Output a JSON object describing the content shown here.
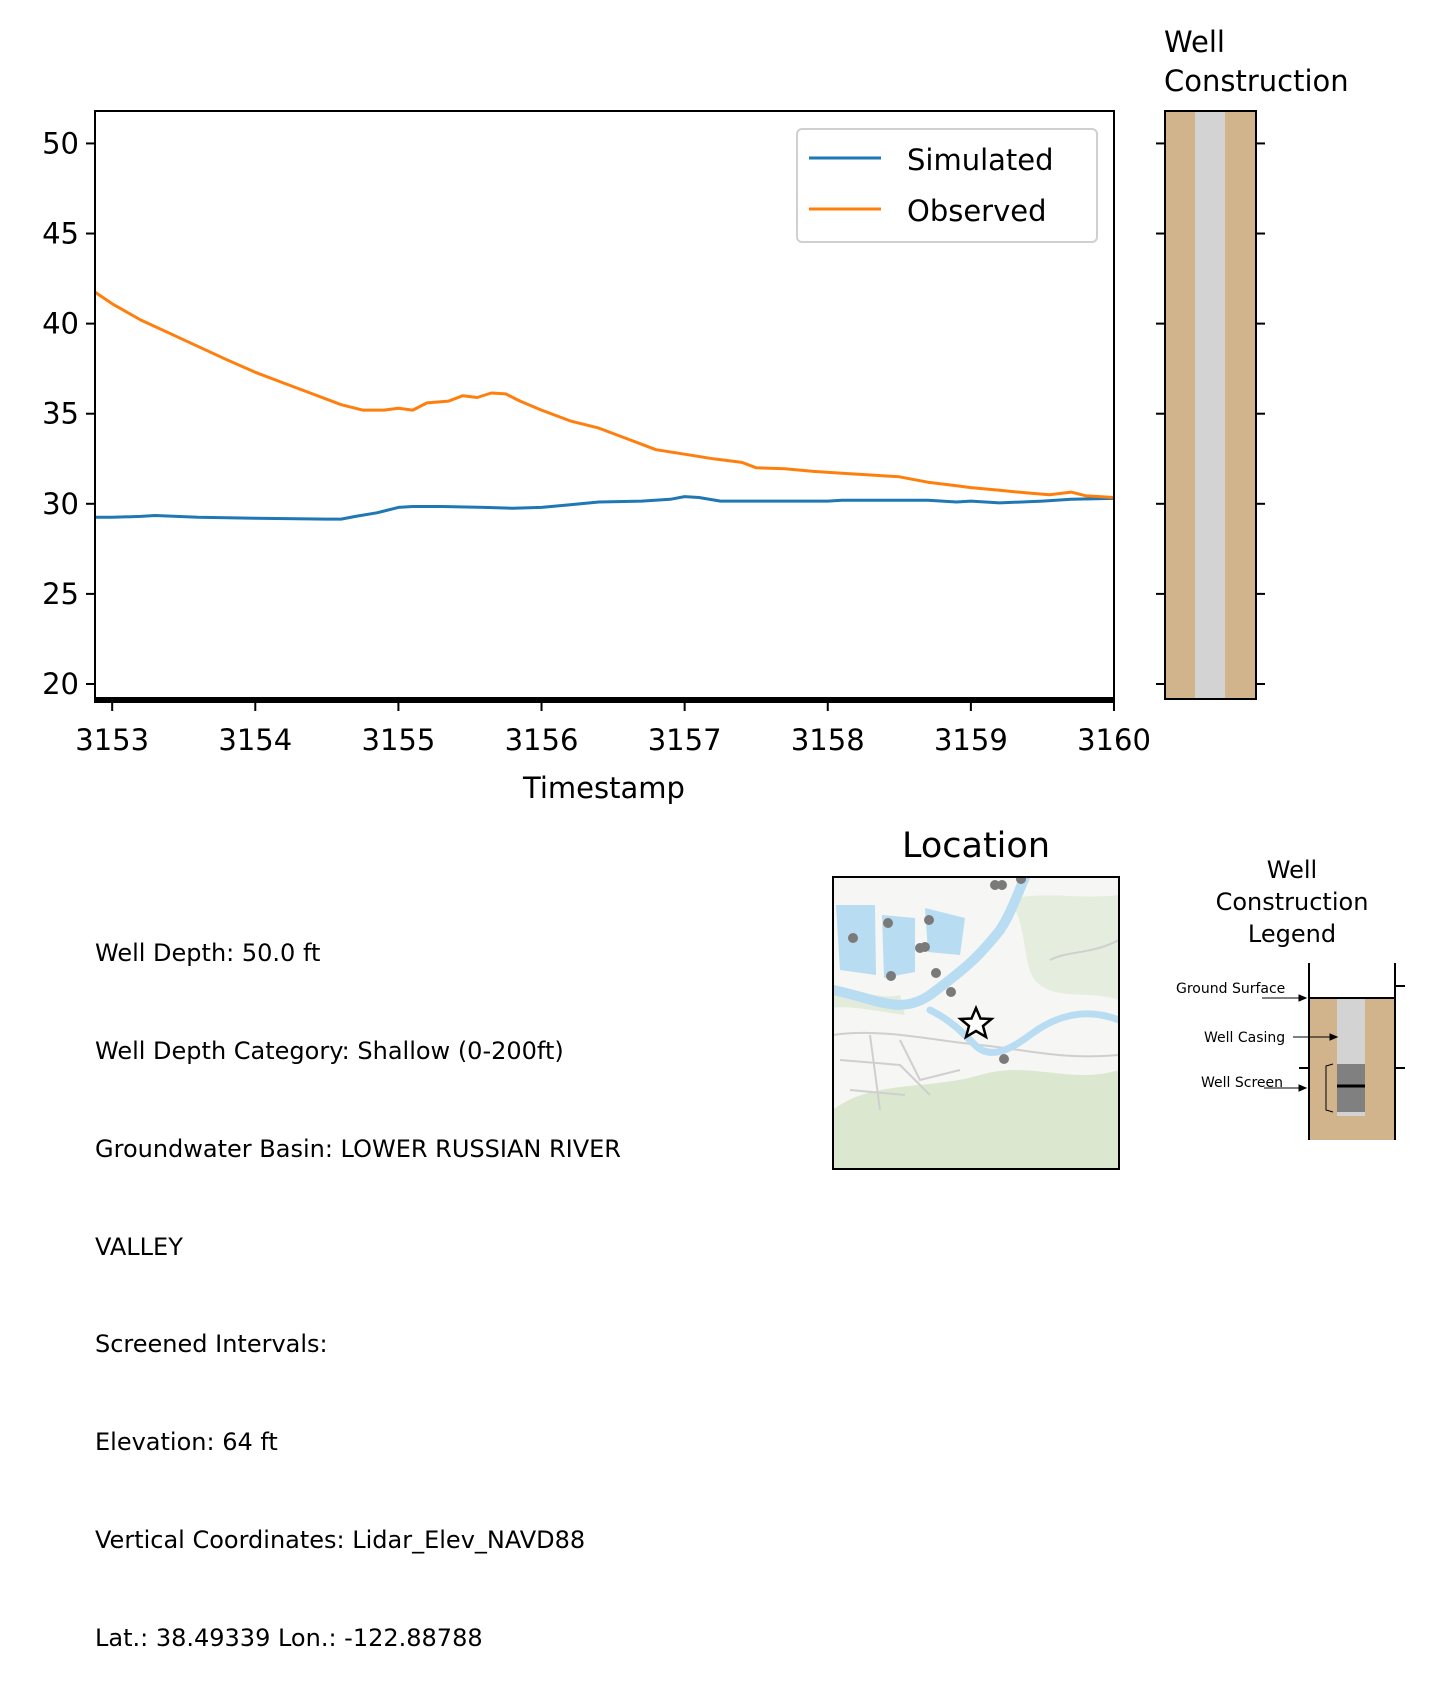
{
  "chart_data": {
    "type": "line",
    "xlabel": "Timestamp",
    "ylabel": "",
    "xlim": [
      3152.88,
      3160.0
    ],
    "ylim": [
      19,
      51.8
    ],
    "xticks": [
      "3153",
      "3154",
      "3155",
      "3156",
      "3157",
      "3158",
      "3159",
      "3160"
    ],
    "yticks": [
      "20",
      "25",
      "30",
      "35",
      "40",
      "45",
      "50"
    ],
    "grid": false,
    "legend": "top-right",
    "series": [
      {
        "name": "Simulated",
        "color": "#1f77b4",
        "points": [
          [
            3152.88,
            29.25
          ],
          [
            3153.0,
            29.25
          ],
          [
            3153.2,
            29.3
          ],
          [
            3153.3,
            29.35
          ],
          [
            3153.6,
            29.25
          ],
          [
            3154.0,
            29.2
          ],
          [
            3154.5,
            29.15
          ],
          [
            3154.6,
            29.15
          ],
          [
            3154.7,
            29.3
          ],
          [
            3154.85,
            29.5
          ],
          [
            3155.0,
            29.8
          ],
          [
            3155.1,
            29.85
          ],
          [
            3155.3,
            29.85
          ],
          [
            3155.6,
            29.8
          ],
          [
            3155.8,
            29.75
          ],
          [
            3156.0,
            29.8
          ],
          [
            3156.2,
            29.95
          ],
          [
            3156.4,
            30.1
          ],
          [
            3156.7,
            30.15
          ],
          [
            3156.9,
            30.25
          ],
          [
            3157.0,
            30.4
          ],
          [
            3157.1,
            30.35
          ],
          [
            3157.25,
            30.15
          ],
          [
            3157.5,
            30.15
          ],
          [
            3157.8,
            30.15
          ],
          [
            3158.0,
            30.15
          ],
          [
            3158.1,
            30.2
          ],
          [
            3158.3,
            30.2
          ],
          [
            3158.5,
            30.2
          ],
          [
            3158.7,
            30.2
          ],
          [
            3158.9,
            30.1
          ],
          [
            3159.0,
            30.15
          ],
          [
            3159.2,
            30.05
          ],
          [
            3159.5,
            30.15
          ],
          [
            3159.7,
            30.25
          ],
          [
            3160.0,
            30.3
          ]
        ]
      },
      {
        "name": "Observed",
        "color": "#ff7f0e",
        "points": [
          [
            3152.88,
            41.75
          ],
          [
            3153.0,
            41.1
          ],
          [
            3153.2,
            40.2
          ],
          [
            3153.5,
            39.1
          ],
          [
            3153.8,
            38.0
          ],
          [
            3154.0,
            37.3
          ],
          [
            3154.2,
            36.7
          ],
          [
            3154.4,
            36.1
          ],
          [
            3154.6,
            35.5
          ],
          [
            3154.75,
            35.2
          ],
          [
            3154.9,
            35.2
          ],
          [
            3155.0,
            35.3
          ],
          [
            3155.1,
            35.2
          ],
          [
            3155.2,
            35.6
          ],
          [
            3155.35,
            35.7
          ],
          [
            3155.45,
            36.0
          ],
          [
            3155.55,
            35.9
          ],
          [
            3155.65,
            36.15
          ],
          [
            3155.75,
            36.1
          ],
          [
            3155.85,
            35.7
          ],
          [
            3156.0,
            35.2
          ],
          [
            3156.2,
            34.6
          ],
          [
            3156.4,
            34.2
          ],
          [
            3156.6,
            33.6
          ],
          [
            3156.8,
            33.0
          ],
          [
            3157.0,
            32.75
          ],
          [
            3157.2,
            32.5
          ],
          [
            3157.4,
            32.3
          ],
          [
            3157.5,
            32.0
          ],
          [
            3157.7,
            31.95
          ],
          [
            3157.9,
            31.8
          ],
          [
            3158.1,
            31.7
          ],
          [
            3158.3,
            31.6
          ],
          [
            3158.5,
            31.5
          ],
          [
            3158.7,
            31.2
          ],
          [
            3158.9,
            31.0
          ],
          [
            3159.0,
            30.9
          ],
          [
            3159.2,
            30.75
          ],
          [
            3159.4,
            30.6
          ],
          [
            3159.55,
            30.5
          ],
          [
            3159.7,
            30.65
          ],
          [
            3159.8,
            30.45
          ],
          [
            3160.0,
            30.35
          ]
        ]
      }
    ]
  },
  "well_panel": {
    "title_line1": "Well",
    "title_line2": "Construction",
    "casing_color": "#d3d3d3",
    "annulus_color": "#d2b48c"
  },
  "info": {
    "depth": "Well Depth: 50.0 ft",
    "category": "Well Depth Category: Shallow (0-200ft)",
    "basin_line1": "Groundwater Basin: LOWER RUSSIAN RIVER",
    "basin_line2": "VALLEY",
    "screened": "Screened Intervals:",
    "elevation": "Elevation: 64 ft",
    "vertical": "Vertical Coordinates: Lidar_Elev_NAVD88",
    "latlon": "Lat.: 38.49339 Lon.: -122.88788"
  },
  "location": {
    "title": "Location",
    "water_color": "#b8dcf2",
    "land_color": "#f6f6f4",
    "vegetation_color": "#dbe8cf"
  },
  "legend_panel": {
    "title_line1": "Well",
    "title_line2": "Construction",
    "title_line3": "Legend",
    "ground_surface": "Ground Surface",
    "well_casing": "Well Casing",
    "well_screen": "Well Screen"
  }
}
